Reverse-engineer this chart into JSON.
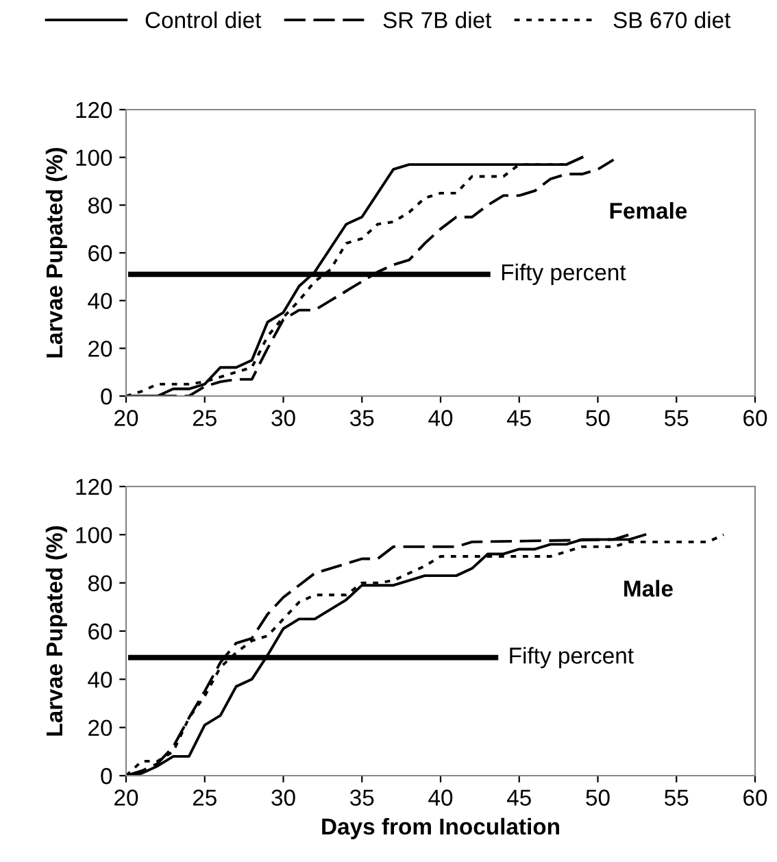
{
  "chart_data": [
    {
      "type": "line",
      "ylabel": "Larvae Pupated (%)",
      "annotations": [
        "Female",
        {
          "text": "Fifty percent",
          "x": 43,
          "y": 51
        }
      ],
      "legend": "top",
      "xlim": [
        20,
        60
      ],
      "xticks": [
        20,
        25,
        30,
        35,
        40,
        45,
        50,
        55,
        60
      ],
      "ylim": [
        0,
        120
      ],
      "yticks": [
        0,
        20,
        40,
        60,
        80,
        100,
        120
      ],
      "grid": false,
      "series": [
        {
          "name": "Control diet",
          "color": "#000000",
          "line_style": "solid",
          "x": [
            20,
            21,
            22,
            23,
            24,
            25,
            26,
            27,
            28,
            29,
            30,
            31,
            32,
            33,
            34,
            35,
            36,
            37,
            38,
            48,
            49
          ],
          "values": [
            0,
            0,
            0,
            3,
            3,
            5,
            12,
            12,
            15,
            31,
            35,
            46,
            52,
            62,
            72,
            75,
            85,
            95,
            97,
            97,
            100
          ]
        },
        {
          "name": "SR 7B diet",
          "color": "#000000",
          "line_style": "dashed",
          "x": [
            20,
            21,
            22,
            23,
            24,
            25,
            26,
            27,
            28,
            29,
            30,
            31,
            32,
            33,
            34,
            35,
            36,
            37,
            38,
            39,
            40,
            41,
            42,
            43,
            44,
            45,
            46,
            47,
            48,
            49,
            50,
            51
          ],
          "values": [
            0,
            0,
            0,
            0,
            0,
            4,
            6,
            7,
            7,
            20,
            32,
            36,
            36,
            40,
            44,
            48,
            52,
            55,
            57,
            64,
            70,
            75,
            75,
            80,
            84,
            84,
            86,
            91,
            93,
            93,
            95,
            99
          ]
        },
        {
          "name": "SB 670 diet",
          "color": "#000000",
          "line_style": "dotted",
          "x": [
            20,
            21,
            22,
            23,
            24,
            25,
            26,
            27,
            28,
            29,
            30,
            31,
            32,
            33,
            34,
            35,
            36,
            37,
            38,
            39,
            40,
            41,
            42,
            43,
            44,
            45,
            46,
            47,
            48
          ],
          "values": [
            0,
            2,
            5,
            5,
            5,
            6,
            8,
            10,
            12,
            25,
            33,
            40,
            48,
            53,
            64,
            66,
            72,
            73,
            77,
            83,
            85,
            85,
            92,
            92,
            92,
            97,
            97,
            97,
            97
          ]
        },
        {
          "color": "#000000",
          "line_style": "solid",
          "x": [
            20.3,
            43
          ],
          "values": [
            51,
            51
          ]
        }
      ]
    },
    {
      "type": "line",
      "ylabel": "Larvae Pupated (%)",
      "xlabel": "Days from Inoculation",
      "annotations": [
        "Male",
        {
          "text": "Fifty percent",
          "x": 43.5,
          "y": 49
        }
      ],
      "xlim": [
        20,
        60
      ],
      "xticks": [
        20,
        25,
        30,
        35,
        40,
        45,
        50,
        55,
        60
      ],
      "ylim": [
        0,
        120
      ],
      "yticks": [
        0,
        20,
        40,
        60,
        80,
        100,
        120
      ],
      "grid": false,
      "series": [
        {
          "color": "#000000",
          "line_style": "solid",
          "x": [
            20,
            21,
            22,
            23,
            24,
            25,
            26,
            27,
            28,
            29,
            30,
            31,
            32,
            33,
            34,
            35,
            36,
            37,
            38,
            39,
            40,
            41,
            42,
            43,
            44,
            45,
            46,
            47,
            48,
            49,
            50,
            51,
            52,
            53
          ],
          "values": [
            0,
            1,
            4,
            8,
            8,
            21,
            25,
            37,
            40,
            50,
            61,
            65,
            65,
            69,
            73,
            79,
            79,
            79,
            81,
            83,
            83,
            83,
            86,
            92,
            92,
            94,
            94,
            96,
            96,
            98,
            98,
            98,
            98,
            100
          ]
        },
        {
          "color": "#000000",
          "line_style": "dashed",
          "x": [
            20,
            21,
            22,
            23,
            24,
            25,
            26,
            27,
            28,
            29,
            30,
            31,
            32,
            33,
            34,
            35,
            36,
            37,
            41,
            42,
            51,
            52
          ],
          "values": [
            0,
            2,
            5,
            12,
            24,
            35,
            47,
            55,
            57,
            67,
            74,
            79,
            84,
            86,
            88,
            90,
            90,
            95,
            95,
            97,
            98,
            100
          ]
        },
        {
          "color": "#000000",
          "line_style": "dotted",
          "x": [
            20,
            21,
            22,
            23,
            24,
            25,
            26,
            27,
            28,
            29,
            30,
            31,
            32,
            33,
            34,
            35,
            36,
            37,
            38,
            39,
            40,
            47,
            48,
            49,
            51,
            52,
            57,
            58
          ],
          "values": [
            0,
            6,
            6,
            10,
            24,
            33,
            45,
            51,
            56,
            58,
            65,
            72,
            75,
            75,
            75,
            80,
            80,
            81,
            84,
            87,
            91,
            91,
            93,
            95,
            95,
            97,
            97,
            100
          ]
        },
        {
          "color": "#000000",
          "line_style": "solid",
          "x": [
            20.3,
            43.5
          ],
          "values": [
            49,
            49
          ]
        }
      ]
    }
  ]
}
